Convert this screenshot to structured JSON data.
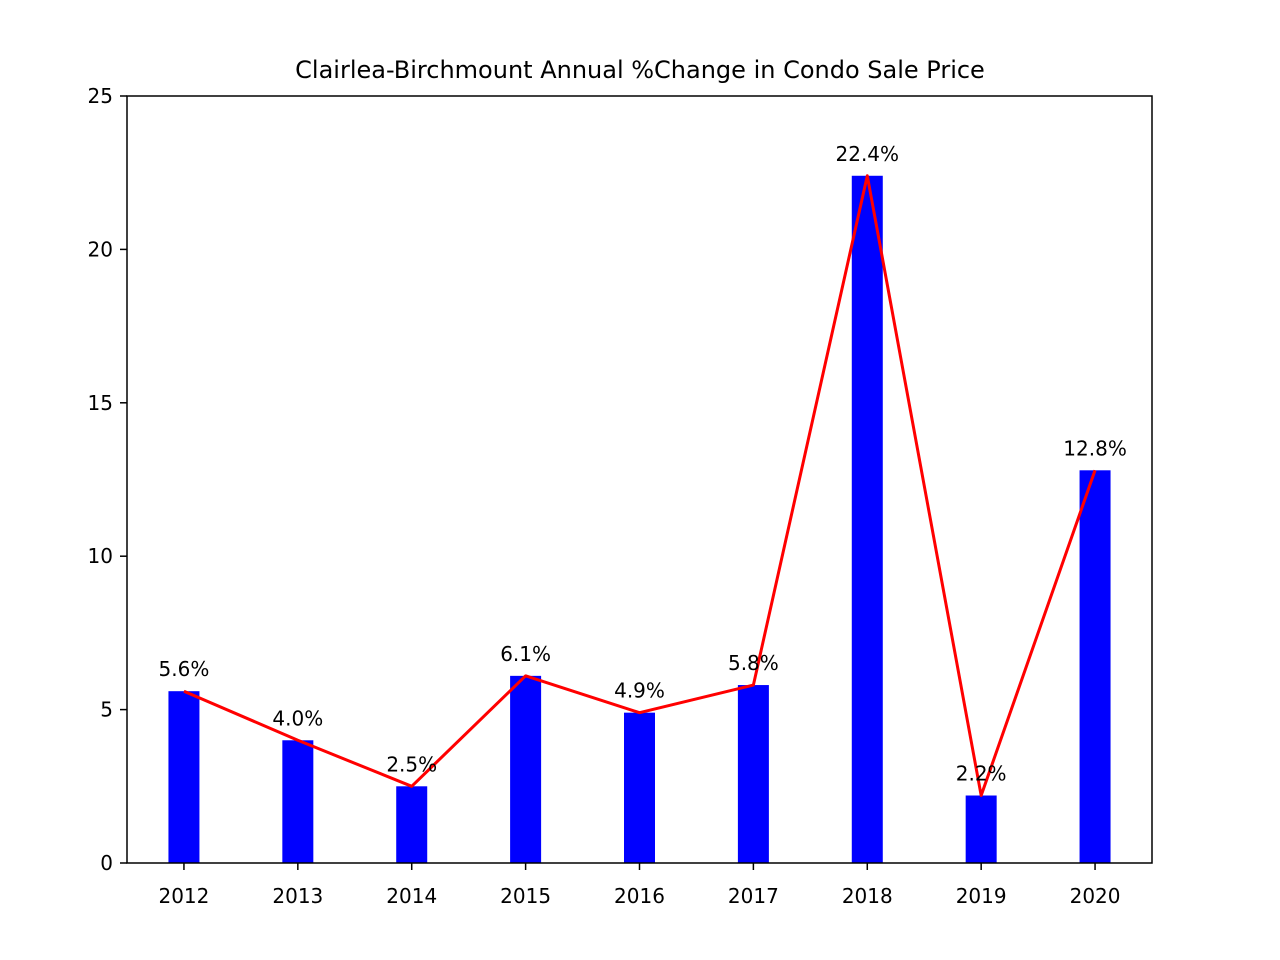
{
  "chart_data": {
    "type": "bar",
    "title": "Clairlea-Birchmount Annual %Change in Condo Sale Price",
    "xlabel": "",
    "ylabel": "",
    "categories": [
      "2012",
      "2013",
      "2014",
      "2015",
      "2016",
      "2017",
      "2018",
      "2019",
      "2020"
    ],
    "values": [
      5.6,
      4.0,
      2.5,
      6.1,
      4.9,
      5.8,
      22.4,
      2.2,
      12.8
    ],
    "data_labels": [
      "5.6%",
      "4.0%",
      "2.5%",
      "6.1%",
      "4.9%",
      "5.8%",
      "22.4%",
      "2.2%",
      "12.8%"
    ],
    "ylim": [
      0,
      25
    ],
    "yticks": [
      0,
      5,
      10,
      15,
      20,
      25
    ],
    "bar_color": "#0000ff",
    "line_color": "#ff0000",
    "line_overlay": true,
    "grid": false,
    "legend": "none"
  }
}
